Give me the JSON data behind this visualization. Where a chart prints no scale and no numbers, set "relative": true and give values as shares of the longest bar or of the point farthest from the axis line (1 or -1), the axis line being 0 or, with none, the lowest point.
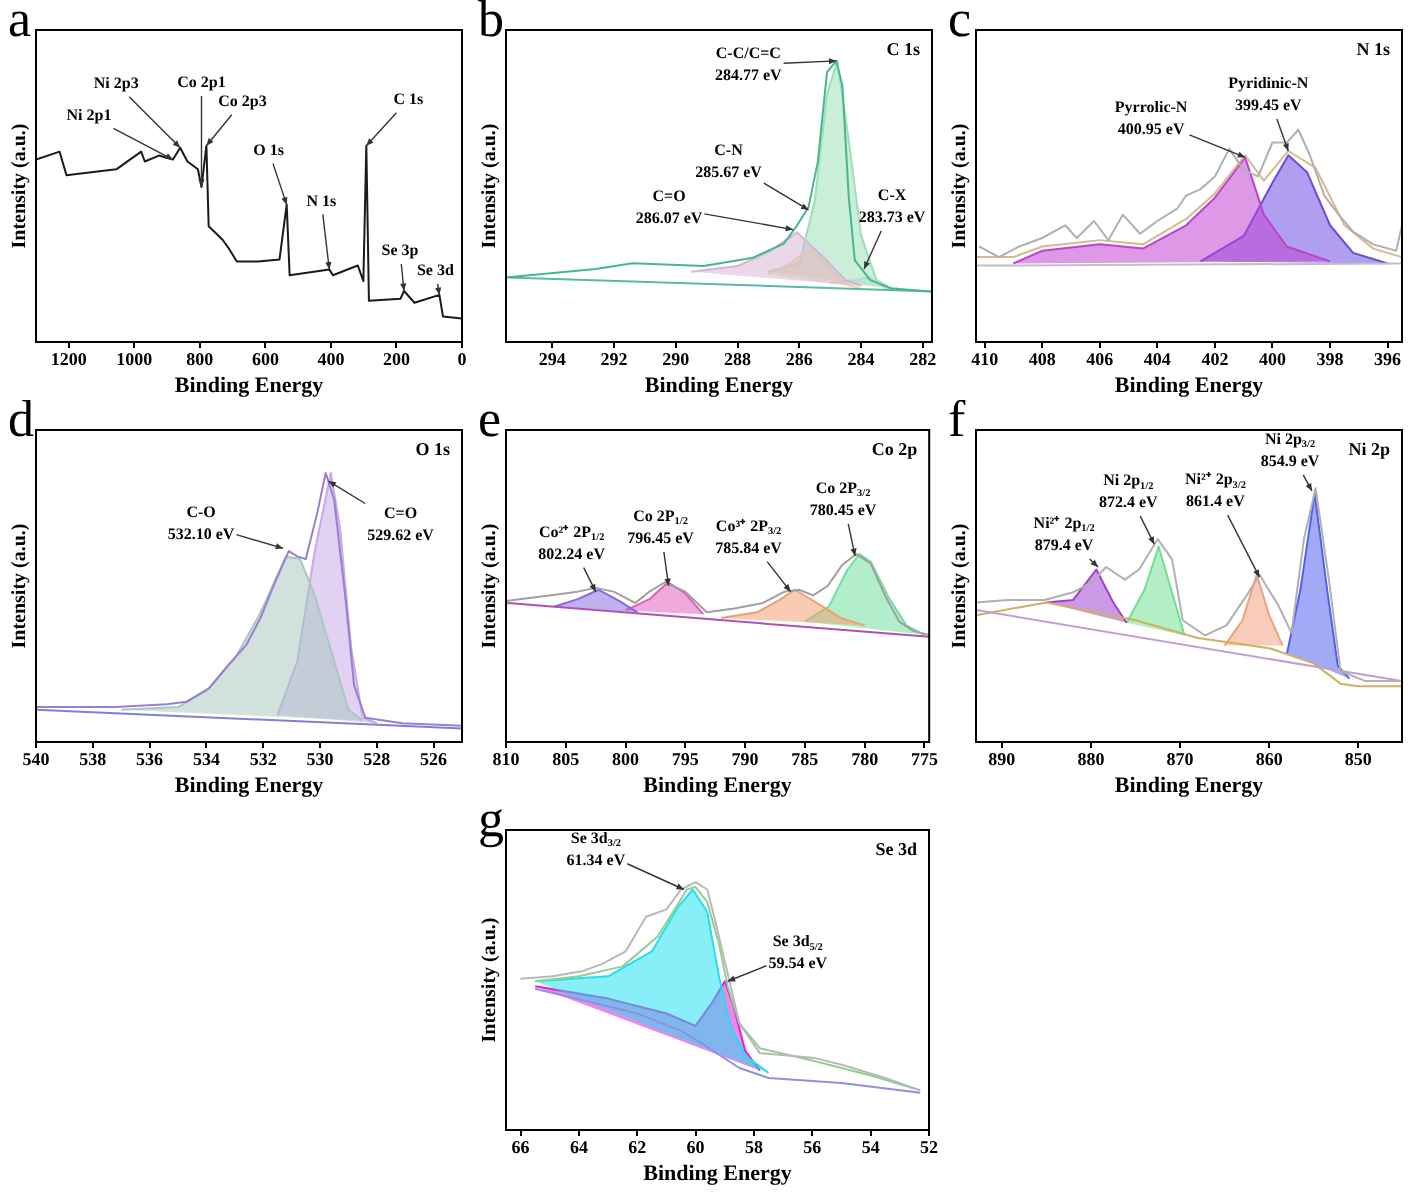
{
  "chart_data": [
    {
      "type": "line",
      "relative": true,
      "marker": "none",
      "xlim": [
        1300,
        0
      ],
      "xticks": [
        1200,
        1000,
        800,
        600,
        400,
        200,
        0
      ],
      "xlabel": "Binding Energy",
      "ylabel": "Intensity (a.u.)",
      "annotations": [
        "a",
        {
          "text": "Ni 2p3",
          "x": 860,
          "y": 0.99
        },
        {
          "text": "Ni 2p1",
          "x": 882,
          "y": 0.93
        },
        {
          "text": "Co 2p1",
          "x": 795,
          "y": 0.79
        },
        {
          "text": "Co 2p3",
          "x": 780,
          "y": 1.0
        },
        {
          "text": "O 1s",
          "x": 535,
          "y": 0.7
        },
        {
          "text": "N 1s",
          "x": 405,
          "y": 0.37
        },
        {
          "text": "C 1s",
          "x": 292,
          "y": 1.0
        },
        {
          "text": "Se 3p",
          "x": 177,
          "y": 0.26
        },
        {
          "text": "Se 3d",
          "x": 69,
          "y": 0.24
        }
      ],
      "series": [
        {
          "color": "#1a1a1a",
          "x": [
            1300,
            1228,
            1207,
            1055,
            979,
            968,
            925,
            882,
            860,
            838,
            806,
            795,
            780,
            773,
            730,
            713,
            687,
            622,
            557,
            535,
            526,
            405,
            394,
            318,
            301,
            292,
            284,
            188,
            177,
            145,
            69,
            58,
            0
          ],
          "values": [
            0.93,
            0.97,
            0.85,
            0.88,
            0.97,
            0.92,
            0.95,
            0.93,
            0.99,
            0.92,
            0.88,
            0.79,
            1.0,
            0.59,
            0.52,
            0.48,
            0.41,
            0.41,
            0.42,
            0.7,
            0.34,
            0.37,
            0.34,
            0.39,
            0.31,
            1.0,
            0.21,
            0.22,
            0.26,
            0.2,
            0.24,
            0.13,
            0.12
          ]
        }
      ]
    },
    {
      "type": "line",
      "relative": true,
      "marker": "none",
      "xlim": [
        295.5,
        281.7
      ],
      "xticks": [
        294,
        292,
        290,
        288,
        286,
        284,
        282
      ],
      "xlabel": "Binding Energy",
      "ylabel": "Intensity (a.u.)",
      "title": "C 1s",
      "annotations": [
        "b",
        {
          "text": "C-C/C=C\n284.77 eV",
          "x": 284.8,
          "y": 1.0
        },
        {
          "text": "C-N\n285.67 eV",
          "x": 285.7,
          "y": 0.47
        },
        {
          "text": "C=O\n286.07 eV",
          "x": 286.2,
          "y": 0.4
        },
        {
          "text": "C-X\n283.73 eV",
          "x": 283.9,
          "y": 0.26
        }
      ],
      "series": [
        {
          "color": "#45b88a",
          "x": [
            295.5,
            292.6,
            291.4,
            289.1,
            287.5,
            286.5,
            286.1,
            285.7,
            285.4,
            285.1,
            284.8,
            284.6,
            284.4,
            284.2,
            283.7,
            283.0,
            281.7
          ],
          "values": [
            0.23,
            0.26,
            0.28,
            0.27,
            0.3,
            0.35,
            0.41,
            0.48,
            0.64,
            0.96,
            1.0,
            0.91,
            0.52,
            0.29,
            0.22,
            0.19,
            0.18
          ]
        },
        {
          "color": "#5ab8a8",
          "x": [
            295.5,
            281.7
          ],
          "values": [
            0.23,
            0.18
          ]
        },
        {
          "type": "area",
          "color": "#d7b4d6",
          "x": [
            289.5,
            288,
            287,
            286.07,
            285.2,
            284.5,
            284
          ],
          "values": [
            0.25,
            0.27,
            0.32,
            0.39,
            0.3,
            0.22,
            0.2
          ]
        },
        {
          "type": "area",
          "color": "#f0d9a0",
          "x": [
            287,
            286.3,
            285.67,
            285.1,
            284.6,
            284
          ],
          "values": [
            0.24,
            0.28,
            0.33,
            0.27,
            0.21,
            0.19
          ]
        },
        {
          "type": "area",
          "color": "#9de0b8",
          "x": [
            287,
            286,
            285.5,
            285.1,
            284.77,
            284.4,
            284,
            283.5,
            283
          ],
          "values": [
            0.25,
            0.28,
            0.5,
            0.88,
            1.0,
            0.72,
            0.38,
            0.22,
            0.19
          ]
        },
        {
          "type": "area",
          "color": "#c8d8e8",
          "x": [
            285,
            284.2,
            283.73,
            283.2,
            282.8
          ],
          "values": [
            0.21,
            0.22,
            0.23,
            0.19,
            0.19
          ]
        }
      ]
    },
    {
      "type": "line",
      "relative": true,
      "marker": "none",
      "xlim": [
        410.3,
        395.5
      ],
      "xticks": [
        410,
        408,
        406,
        404,
        402,
        400,
        398,
        396
      ],
      "xlabel": "Binding Energy",
      "ylabel": "Intensity (a.u.)",
      "title": "N 1s",
      "annotations": [
        "c",
        {
          "text": "Pyrrolic-N\n400.95 eV",
          "x": 400.95,
          "y": 0.87
        },
        {
          "text": "Pyridinic-N\n399.45 eV",
          "x": 399.45,
          "y": 0.9
        }
      ],
      "series": [
        {
          "color": "#b0b0b0",
          "x": [
            410.2,
            409.5,
            408.8,
            408,
            407.2,
            406.8,
            406.2,
            405.7,
            405.2,
            404.6,
            404,
            403.3,
            403,
            402.5,
            402,
            401.5,
            401,
            400.5,
            400,
            399.5,
            399.1,
            398.7,
            398.2,
            397.7,
            397.2,
            396.5,
            395.7,
            395.5
          ],
          "values": [
            0.45,
            0.4,
            0.45,
            0.49,
            0.55,
            0.49,
            0.57,
            0.48,
            0.6,
            0.51,
            0.57,
            0.63,
            0.69,
            0.72,
            0.78,
            0.91,
            0.81,
            0.78,
            0.94,
            0.94,
            1.0,
            0.88,
            0.69,
            0.6,
            0.52,
            0.46,
            0.43,
            0.55
          ]
        },
        {
          "color": "#c0c0c0",
          "x": [
            410.3,
            395.5
          ],
          "values": [
            0.36,
            0.37
          ]
        },
        {
          "type": "area",
          "color": "#c040d0",
          "x": [
            409,
            408,
            406,
            404.5,
            403,
            402,
            400.95,
            400.3,
            399.5,
            398
          ],
          "values": [
            0.37,
            0.43,
            0.46,
            0.44,
            0.55,
            0.68,
            0.87,
            0.6,
            0.45,
            0.38
          ]
        },
        {
          "type": "area",
          "color": "#6a4be0",
          "x": [
            402.5,
            401,
            400,
            399.45,
            398.8,
            398,
            397.2,
            396
          ],
          "values": [
            0.38,
            0.5,
            0.75,
            0.88,
            0.8,
            0.55,
            0.42,
            0.37
          ]
        },
        {
          "color": "#d8b890",
          "x": [
            410.3,
            409,
            408,
            406,
            404.5,
            403,
            402,
            400.95,
            400.3,
            399.45,
            398.5,
            397.5,
            396.5,
            395.5
          ],
          "values": [
            0.4,
            0.4,
            0.45,
            0.48,
            0.46,
            0.58,
            0.7,
            0.88,
            0.76,
            0.9,
            0.82,
            0.55,
            0.44,
            0.4
          ]
        }
      ]
    },
    {
      "type": "line",
      "relative": true,
      "marker": "none",
      "xlim": [
        540,
        525
      ],
      "xticks": [
        540,
        538,
        536,
        534,
        532,
        530,
        528,
        526
      ],
      "xlabel": "Binding Energy",
      "ylabel": "Intensity (a.u.)",
      "title": "O 1s",
      "annotations": [
        "d",
        {
          "text": "C-O\n532.10 eV",
          "x": 531.3,
          "y": 0.72
        },
        {
          "text": "C=O\n529.62 eV",
          "x": 529.7,
          "y": 0.97
        }
      ],
      "series": [
        {
          "color": "#9a7fd0",
          "x": [
            540,
            537.2,
            535.4,
            534.7,
            533.9,
            533.2,
            532.6,
            532.1,
            531.6,
            531.1,
            530.8,
            530.5,
            530.1,
            529.8,
            529.5,
            529.1,
            528.8,
            528.4,
            527.1,
            525
          ],
          "values": [
            0.13,
            0.13,
            0.14,
            0.15,
            0.2,
            0.29,
            0.36,
            0.46,
            0.59,
            0.71,
            0.69,
            0.68,
            0.85,
            1.0,
            0.9,
            0.53,
            0.21,
            0.09,
            0.07,
            0.06
          ]
        },
        {
          "color": "#8080d0",
          "x": [
            540,
            525
          ],
          "values": [
            0.12,
            0.05
          ]
        },
        {
          "type": "area",
          "color": "#a8c8c0",
          "x": [
            537,
            535,
            534,
            533,
            532.1,
            531.2,
            530.7,
            530.2,
            529.5,
            529,
            528.5
          ],
          "values": [
            0.12,
            0.13,
            0.19,
            0.31,
            0.48,
            0.69,
            0.68,
            0.55,
            0.3,
            0.12,
            0.08
          ]
        },
        {
          "type": "area",
          "color": "#c8a8e8",
          "x": [
            531.5,
            530.8,
            530.2,
            529.62,
            529.3,
            528.9,
            528.5,
            528
          ],
          "values": [
            0.1,
            0.3,
            0.7,
            1.0,
            0.8,
            0.35,
            0.09,
            0.07
          ]
        }
      ]
    },
    {
      "type": "line",
      "relative": true,
      "marker": "none",
      "xlim": [
        810,
        774.6
      ],
      "xticks": [
        810,
        805,
        800,
        795,
        790,
        785,
        780,
        775
      ],
      "xlabel": "Binding Energy",
      "ylabel": "Intensity (a.u.)",
      "title": "Co 2p",
      "annotations": [
        "e",
        {
          "text": "Co²⁺ 2P$_{1/2}$\n802.24 eV",
          "x": 802.5,
          "y": 0.8
        },
        {
          "text": "Co 2P$_{1/2}$\n796.45 eV",
          "x": 796.4,
          "y": 0.83
        },
        {
          "text": "Co³⁺ 2P$_{3/2}$\n785.84 eV",
          "x": 786.2,
          "y": 0.8
        },
        {
          "text": "Co 2P$_{3/2}$\n780.45 eV",
          "x": 780.8,
          "y": 0.99
        }
      ],
      "series": [
        {
          "color": "#a0a0a0",
          "x": [
            810,
            806.4,
            804,
            802.5,
            801,
            799.2,
            798,
            796.7,
            795,
            793.2,
            790.9,
            788.5,
            786.7,
            785.5,
            784.3,
            783.1,
            781.9,
            780.7,
            779.5,
            778.3,
            777.1,
            775.9,
            774.6
          ],
          "values": [
            0.75,
            0.78,
            0.8,
            0.82,
            0.8,
            0.74,
            0.8,
            0.85,
            0.8,
            0.69,
            0.71,
            0.74,
            0.8,
            0.81,
            0.78,
            0.83,
            0.94,
            1.0,
            0.95,
            0.78,
            0.64,
            0.59,
            0.57
          ]
        },
        {
          "color": "#b050b0",
          "x": [
            810,
            774.6
          ],
          "values": [
            0.74,
            0.56
          ]
        },
        {
          "type": "area",
          "color": "#8a6ae0",
          "x": [
            806,
            804,
            802.24,
            800.5,
            799
          ],
          "values": [
            0.72,
            0.76,
            0.81,
            0.75,
            0.69
          ]
        },
        {
          "type": "area",
          "color": "#e060c0",
          "x": [
            800,
            798,
            796.45,
            795,
            793.5
          ],
          "values": [
            0.7,
            0.76,
            0.85,
            0.79,
            0.68
          ]
        },
        {
          "type": "area",
          "color": "#f0a070",
          "x": [
            792,
            789,
            787,
            785.84,
            784,
            782,
            780
          ],
          "values": [
            0.66,
            0.69,
            0.76,
            0.81,
            0.74,
            0.66,
            0.62
          ]
        },
        {
          "type": "area",
          "color": "#70e0a0",
          "x": [
            785,
            783,
            781.5,
            780.45,
            779.5,
            778,
            776.5,
            775
          ],
          "values": [
            0.64,
            0.72,
            0.91,
            1.0,
            0.96,
            0.77,
            0.62,
            0.57
          ]
        }
      ]
    },
    {
      "type": "line",
      "relative": true,
      "marker": "none",
      "xlim": [
        892.9,
        845.1
      ],
      "xticks": [
        890,
        880,
        870,
        860,
        850
      ],
      "xlabel": "Binding Energy",
      "ylabel": "Intensity (a.u.)",
      "title": "Ni 2p",
      "annotations": [
        "f",
        {
          "text": "Ni²⁺ 2p$_{1/2}$\n879.4 eV",
          "x": 879.2,
          "y": 0.69
        },
        {
          "text": "Ni 2p$_{1/2}$\n872.4 eV",
          "x": 872.9,
          "y": 0.78
        },
        {
          "text": "Ni²⁺ 2p$_{3/2}$\n861.4 eV",
          "x": 861.1,
          "y": 0.65
        },
        {
          "text": "Ni 2p$_{3/2}$\n854.9 eV",
          "x": 855.2,
          "y": 0.99
        }
      ],
      "series": [
        {
          "color": "#b0b0b0",
          "x": [
            892.9,
            889.3,
            885.2,
            882,
            879.9,
            878.3,
            876.2,
            874.6,
            872.5,
            870.9,
            869.7,
            867.2,
            864.8,
            862.3,
            861.1,
            859,
            857.5,
            856.1,
            854.8,
            853.3,
            852,
            849.2,
            845.1
          ],
          "values": [
            0.55,
            0.56,
            0.56,
            0.59,
            0.63,
            0.69,
            0.64,
            0.68,
            0.8,
            0.72,
            0.48,
            0.42,
            0.46,
            0.59,
            0.66,
            0.54,
            0.43,
            0.8,
            1.0,
            0.64,
            0.28,
            0.24,
            0.24
          ]
        },
        {
          "color": "#c0a0d0",
          "x": [
            892.9,
            845.1
          ],
          "values": [
            0.52,
            0.24
          ]
        },
        {
          "color": "#d0b060",
          "x": [
            892.9,
            885,
            875,
            868,
            860,
            855,
            852,
            850,
            845.1
          ],
          "values": [
            0.5,
            0.55,
            0.48,
            0.41,
            0.37,
            0.31,
            0.23,
            0.22,
            0.22
          ]
        },
        {
          "type": "area",
          "color": "#a040d0",
          "x": [
            885,
            882,
            879.4,
            877.5,
            876
          ],
          "values": [
            0.55,
            0.56,
            0.68,
            0.55,
            0.47
          ]
        },
        {
          "type": "area",
          "color": "#70e090",
          "x": [
            876,
            874,
            872.4,
            871,
            869.5
          ],
          "values": [
            0.47,
            0.6,
            0.77,
            0.6,
            0.42
          ]
        },
        {
          "type": "area",
          "color": "#f0a080",
          "x": [
            865,
            863,
            861.4,
            860,
            858.5
          ],
          "values": [
            0.38,
            0.48,
            0.66,
            0.5,
            0.38
          ]
        },
        {
          "type": "area",
          "color": "#5060f0",
          "x": [
            858,
            856.5,
            854.9,
            853.5,
            852.3,
            851
          ],
          "values": [
            0.35,
            0.6,
            0.98,
            0.6,
            0.3,
            0.25
          ]
        }
      ]
    },
    {
      "type": "line",
      "relative": true,
      "marker": "none",
      "xlim": [
        66.5,
        52
      ],
      "xticks": [
        66,
        64,
        62,
        60,
        58,
        56,
        54,
        52
      ],
      "xlabel": "Binding Energy",
      "ylabel": "Intensity (a.u.)",
      "title": "Se 3d",
      "annotations": [
        "g",
        {
          "text": "Se 3d$_{3/2}$\n61.34 eV",
          "x": 60.4,
          "y": 0.97
        },
        {
          "text": "Se 3d$_{5/2}$\n59.54 eV",
          "x": 58.9,
          "y": 0.6
        }
      ],
      "series": [
        {
          "color": "#b8b8b8",
          "x": [
            66,
            64.9,
            63.9,
            63.2,
            62.4,
            61.7,
            61.0,
            60.5,
            60.0,
            59.6,
            59.3,
            58.9,
            58.5,
            57.8,
            55.9,
            54.9,
            53.5,
            52.3
          ],
          "values": [
            0.61,
            0.62,
            0.64,
            0.67,
            0.72,
            0.86,
            0.89,
            0.97,
            1.0,
            0.97,
            0.83,
            0.63,
            0.43,
            0.31,
            0.29,
            0.26,
            0.21,
            0.16
          ]
        },
        {
          "color": "#9090e0",
          "x": [
            65.5,
            62,
            60.5,
            59.8,
            58.5,
            57.5,
            55,
            52.3
          ],
          "values": [
            0.57,
            0.47,
            0.4,
            0.35,
            0.25,
            0.21,
            0.19,
            0.15
          ]
        },
        {
          "type": "area",
          "color": "#20e0f0",
          "x": [
            65.5,
            63,
            61.5,
            60.6,
            60.1,
            59.6,
            59.2,
            58.8,
            58.3,
            57.5
          ],
          "values": [
            0.6,
            0.62,
            0.72,
            0.9,
            0.97,
            0.88,
            0.62,
            0.42,
            0.3,
            0.23
          ]
        },
        {
          "type": "area",
          "color": "#e020d0",
          "x": [
            65.5,
            63,
            61,
            60,
            59.4,
            59.0,
            58.7,
            58.3,
            57.8
          ],
          "values": [
            0.58,
            0.53,
            0.47,
            0.42,
            0.52,
            0.6,
            0.5,
            0.32,
            0.24
          ]
        },
        {
          "color": "#90d090",
          "x": [
            65.5,
            64,
            62.5,
            61.3,
            60.3,
            60,
            59.6,
            59.2,
            58.9,
            58.5,
            57.8,
            56,
            54,
            52.3
          ],
          "values": [
            0.6,
            0.62,
            0.66,
            0.78,
            0.97,
            0.98,
            0.92,
            0.75,
            0.58,
            0.43,
            0.33,
            0.28,
            0.22,
            0.16
          ]
        }
      ]
    }
  ]
}
